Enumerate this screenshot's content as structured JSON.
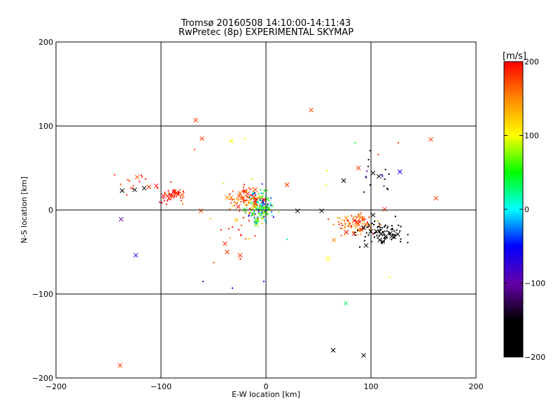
{
  "chart_data": {
    "type": "scatter",
    "title": "Tromsø 20160508 14:10:00-14:11:43",
    "subtitle": "RwPretec (8p) EXPERIMENTAL SKYMAP",
    "xlabel": "E-W location [km]",
    "ylabel": "N-S location [km]",
    "xlim": [
      -200,
      200
    ],
    "ylim": [
      -200,
      200
    ],
    "xticks": [
      "-200",
      "-100",
      "0",
      "100",
      "200"
    ],
    "yticks": [
      "-200",
      "-100",
      "0",
      "100",
      "200"
    ],
    "grid": true,
    "colorbar": {
      "label": "[m/s]",
      "range": [
        -200,
        200
      ],
      "ticks": [
        "-200",
        "-100",
        "0",
        "100",
        "200"
      ],
      "palette": [
        "#000000",
        "#000000",
        "#6600aa",
        "#0000ff",
        "#00ffff",
        "#00ff00",
        "#ffff00",
        "#ff8800",
        "#ff0000"
      ]
    },
    "markers": {
      "small": "dot",
      "large": "cross"
    },
    "clusters": [
      {
        "cx": -5,
        "cy": 5,
        "sx": 6,
        "sy": 9,
        "n": 180,
        "vmean": 40,
        "vsd": 70
      },
      {
        "cx": -20,
        "cy": 15,
        "sx": 8,
        "sy": 8,
        "n": 80,
        "vmean": 170,
        "vsd": 25
      },
      {
        "cx": -88,
        "cy": 17,
        "sx": 6,
        "sy": 5,
        "n": 50,
        "vmean": 185,
        "vsd": 15
      },
      {
        "cx": -125,
        "cy": 30,
        "sx": 10,
        "sy": 8,
        "n": 15,
        "vmean": 180,
        "vsd": 20
      },
      {
        "cx": 85,
        "cy": -18,
        "sx": 9,
        "sy": 7,
        "n": 90,
        "vmean": 170,
        "vsd": 25
      },
      {
        "cx": 110,
        "cy": -27,
        "sx": 12,
        "sy": 8,
        "n": 90,
        "vmean": -200,
        "vsd": 15
      },
      {
        "cx": 103,
        "cy": 40,
        "sx": 12,
        "sy": 15,
        "n": 18,
        "vmean": -150,
        "vsd": 80
      },
      {
        "cx": -30,
        "cy": -25,
        "sx": 15,
        "sy": 20,
        "n": 20,
        "vmean": 170,
        "vsd": 25
      }
    ],
    "points": [
      {
        "x": 43,
        "y": 119,
        "v": 180,
        "m": "cross"
      },
      {
        "x": -67,
        "y": 107,
        "v": 180,
        "m": "cross"
      },
      {
        "x": -61,
        "y": 85,
        "v": 180,
        "m": "cross"
      },
      {
        "x": -33,
        "y": 82,
        "v": 100,
        "m": "cross"
      },
      {
        "x": 157,
        "y": 84,
        "v": 180,
        "m": "cross"
      },
      {
        "x": 162,
        "y": 14,
        "v": 180,
        "m": "cross"
      },
      {
        "x": -138,
        "y": -11,
        "v": -100,
        "m": "cross"
      },
      {
        "x": -124,
        "y": -54,
        "v": -70,
        "m": "cross"
      },
      {
        "x": 59,
        "y": -58,
        "v": 100,
        "m": "cross"
      },
      {
        "x": 76,
        "y": -111,
        "v": 30,
        "m": "cross"
      },
      {
        "x": 64,
        "y": -167,
        "v": -200,
        "m": "cross"
      },
      {
        "x": 93,
        "y": -173,
        "v": -200,
        "m": "cross"
      },
      {
        "x": -139,
        "y": -185,
        "v": 180,
        "m": "cross"
      },
      {
        "x": -39,
        "y": -40,
        "v": 180,
        "m": "cross"
      },
      {
        "x": -37,
        "y": -50,
        "v": 180,
        "m": "cross"
      },
      {
        "x": -137,
        "y": 23,
        "v": -200,
        "m": "cross"
      },
      {
        "x": -125,
        "y": 24,
        "v": -200,
        "m": "cross"
      },
      {
        "x": -116,
        "y": 26,
        "v": -200,
        "m": "cross"
      },
      {
        "x": 74,
        "y": 35,
        "v": -200,
        "m": "cross"
      },
      {
        "x": 102,
        "y": 44,
        "v": -200,
        "m": "cross"
      },
      {
        "x": 88,
        "y": 50,
        "v": 180,
        "m": "cross"
      },
      {
        "x": 113,
        "y": 1,
        "v": 180,
        "m": "cross"
      },
      {
        "x": 53,
        "y": -1,
        "v": -200,
        "m": "cross"
      },
      {
        "x": 30,
        "y": -1,
        "v": -200,
        "m": "cross"
      },
      {
        "x": -62,
        "y": -1,
        "v": 180,
        "m": "cross"
      },
      {
        "x": 20,
        "y": 30,
        "v": 180,
        "m": "cross"
      },
      {
        "x": 102,
        "y": -6,
        "v": -200,
        "m": "cross"
      },
      {
        "x": -60,
        "y": -85,
        "v": -100,
        "m": "dot"
      },
      {
        "x": -32,
        "y": -93,
        "v": -60,
        "m": "dot"
      },
      {
        "x": -2,
        "y": -85,
        "v": -60,
        "m": "dot"
      },
      {
        "x": 20,
        "y": -35,
        "v": 20,
        "m": "dot"
      },
      {
        "x": 118,
        "y": -80,
        "v": 100,
        "m": "dot"
      },
      {
        "x": 85,
        "y": 80,
        "v": 40,
        "m": "dot"
      },
      {
        "x": 126,
        "y": 80,
        "v": 180,
        "m": "dot"
      },
      {
        "x": 107,
        "y": 66,
        "v": 180,
        "m": "dot"
      },
      {
        "x": -68,
        "y": 72,
        "v": 180,
        "m": "dot"
      },
      {
        "x": 58,
        "y": 47,
        "v": 100,
        "m": "dot"
      },
      {
        "x": -20,
        "y": 85,
        "v": 100,
        "m": "dot"
      },
      {
        "x": 57,
        "y": 30,
        "v": 100,
        "m": "dot"
      }
    ]
  }
}
